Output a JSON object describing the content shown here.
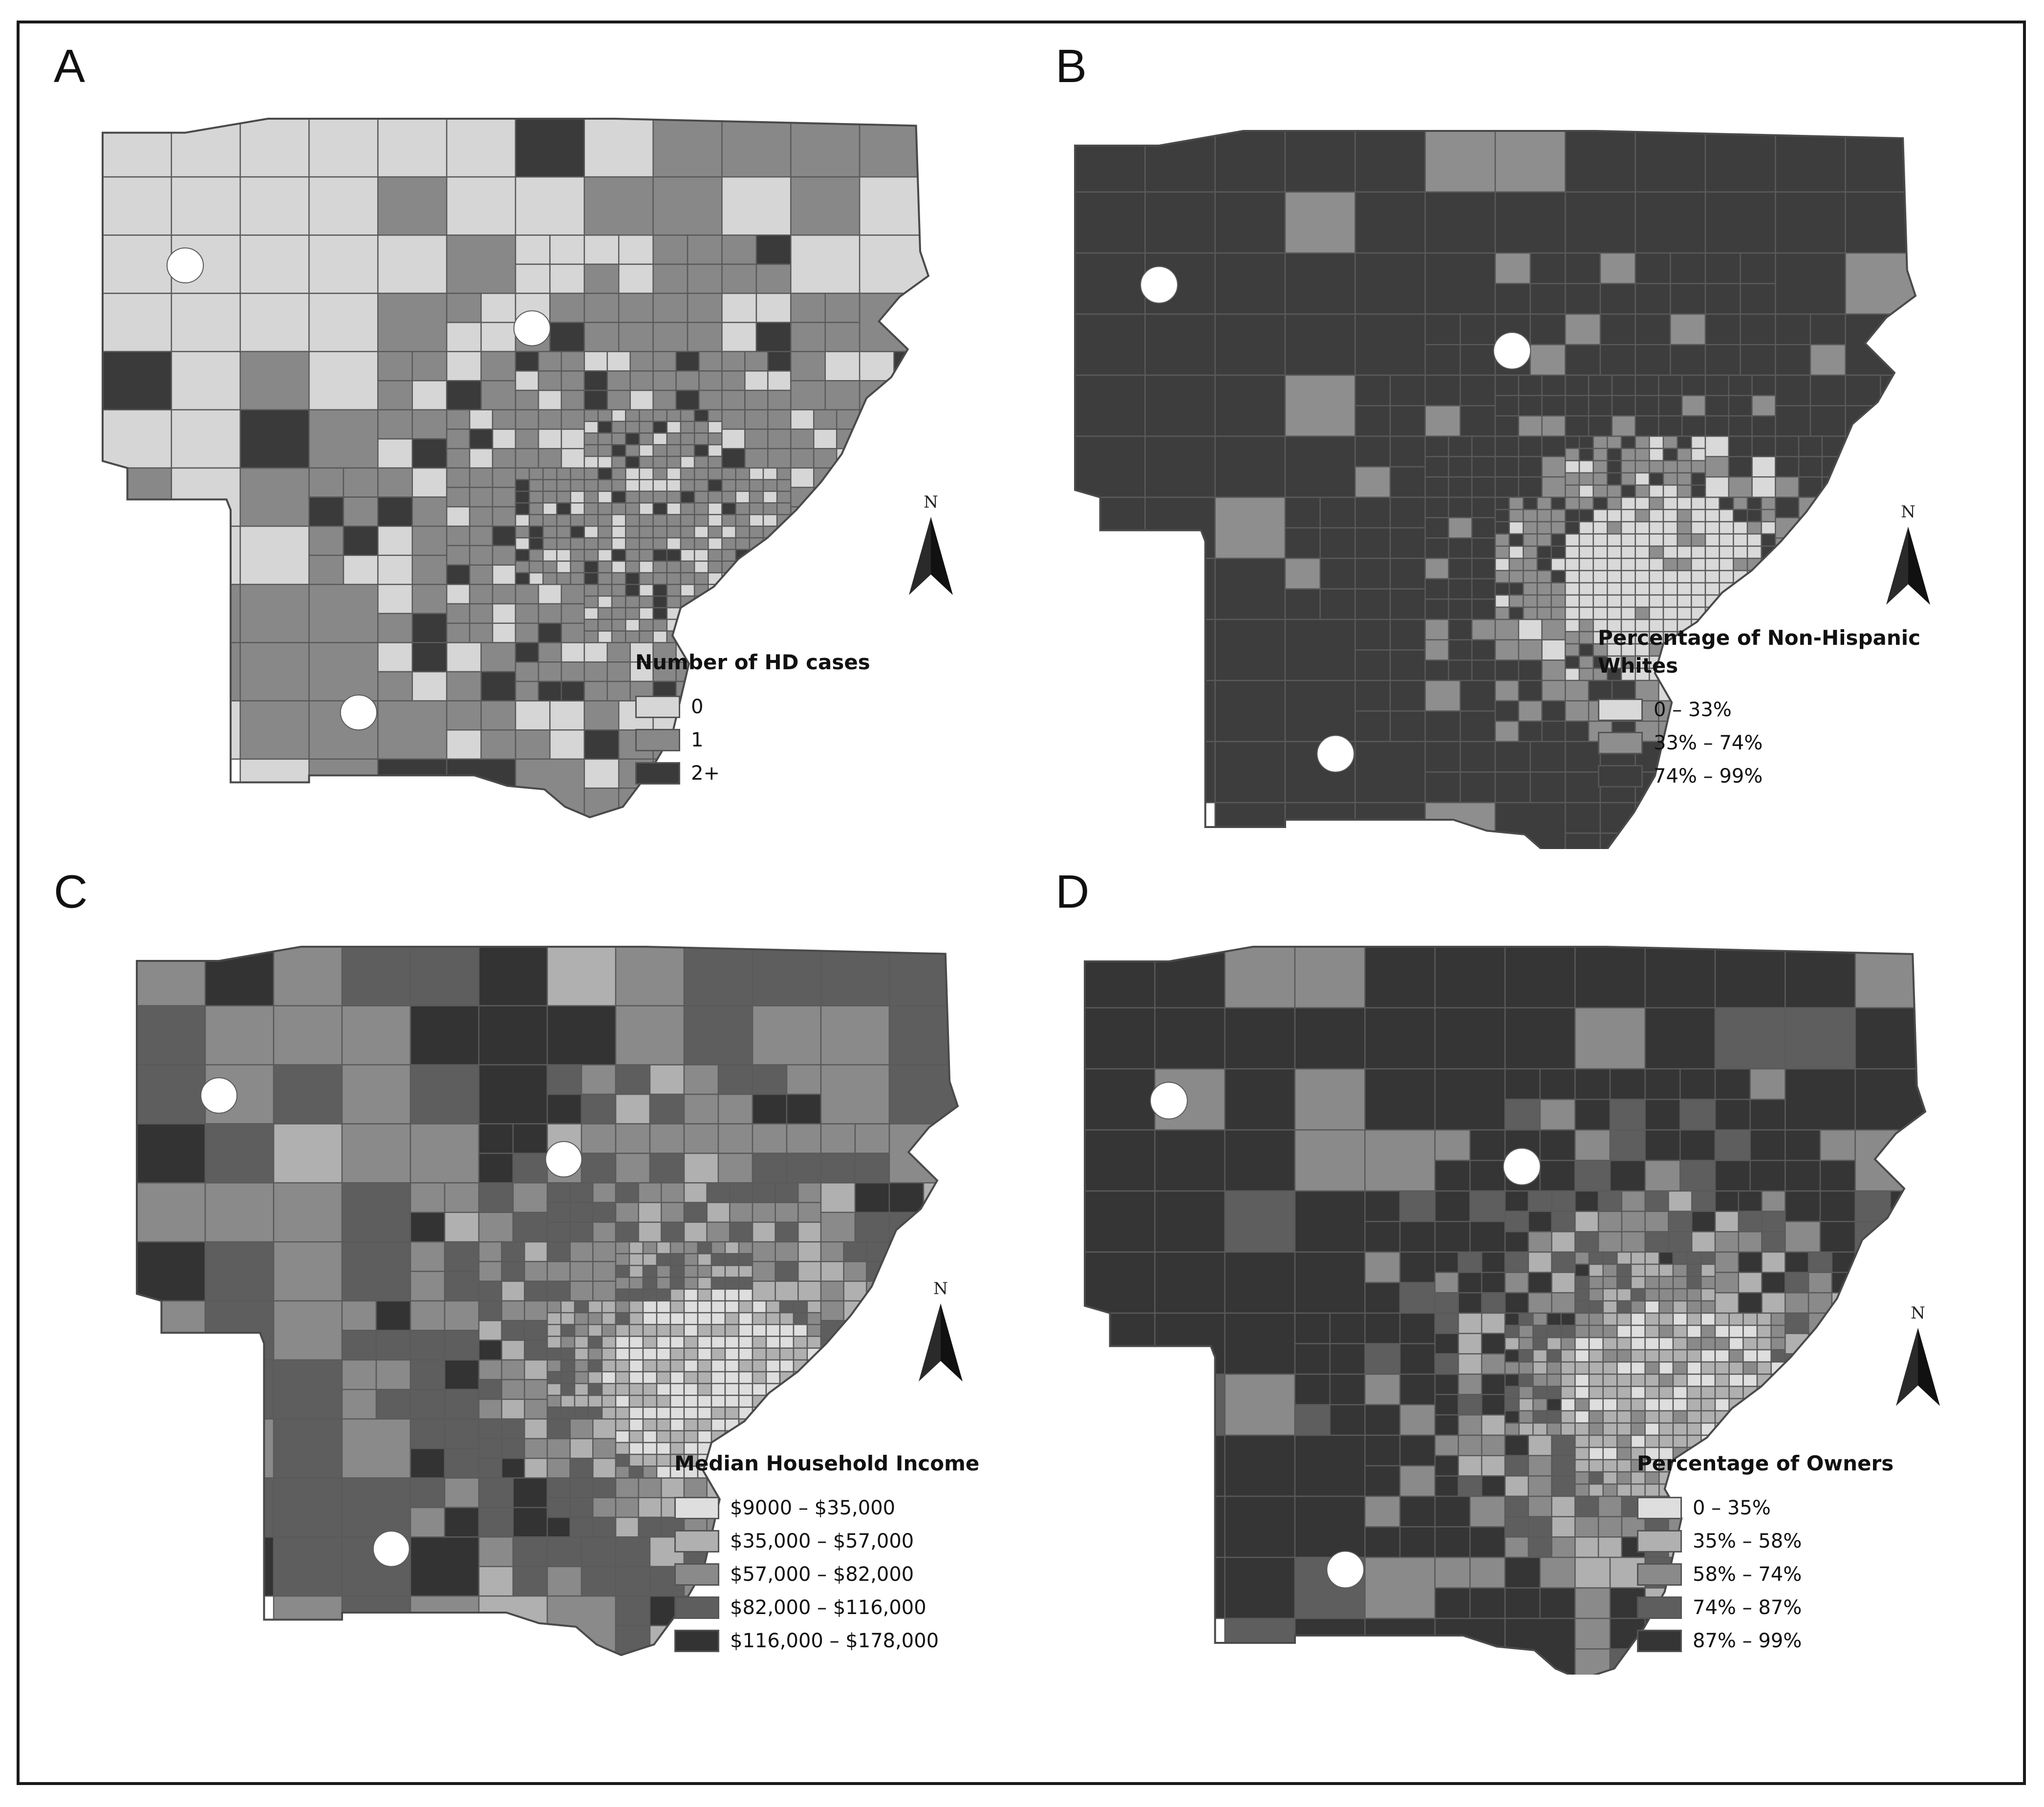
{
  "panels": [
    {
      "letter": "A",
      "legend_title": "Number of HD cases",
      "classes": [
        {
          "label": "0",
          "color": "#d6d6d6"
        },
        {
          "label": "1",
          "color": "#888888"
        },
        {
          "label": "2+",
          "color": "#3a3a3a"
        }
      ],
      "north_label": "N",
      "pattern": "cases"
    },
    {
      "letter": "B",
      "legend_title": "Percentage of Non-Hispanic Whites",
      "classes": [
        {
          "label": "0 – 33%",
          "color": "#d9d9d9"
        },
        {
          "label": "33% – 74%",
          "color": "#8e8e8e"
        },
        {
          "label": "74% – 99%",
          "color": "#3d3d3d"
        }
      ],
      "north_label": "N",
      "pattern": "whites"
    },
    {
      "letter": "C",
      "legend_title": "Median Household Income",
      "classes": [
        {
          "label": "$9000 – $35,000",
          "color": "#dedede"
        },
        {
          "label": "$35,000 – $57,000",
          "color": "#b0b0b0"
        },
        {
          "label": "$57,000 – $82,000",
          "color": "#8a8a8a"
        },
        {
          "label": "$82,000 – $116,000",
          "color": "#5e5e5e"
        },
        {
          "label": "$116,000 – $178,000",
          "color": "#333333"
        }
      ],
      "north_label": "N",
      "pattern": "income"
    },
    {
      "letter": "D",
      "legend_title": "Percentage of Owners",
      "classes": [
        {
          "label": "0 – 35%",
          "color": "#dedede"
        },
        {
          "label": "35% – 58%",
          "color": "#b0b0b0"
        },
        {
          "label": "58% – 74%",
          "color": "#8a8a8a"
        },
        {
          "label": "74% – 87%",
          "color": "#5e5e5e"
        },
        {
          "label": "87% – 99%",
          "color": "#353535"
        }
      ],
      "north_label": "N",
      "pattern": "owners"
    }
  ]
}
